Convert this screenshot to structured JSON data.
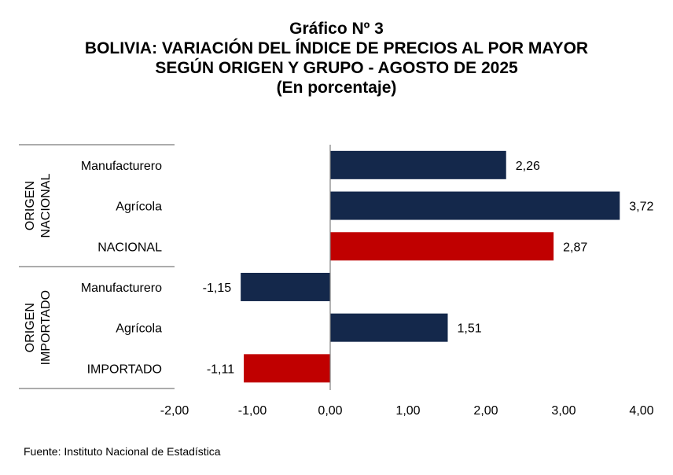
{
  "header": {
    "line1": "Gráfico Nº 3",
    "line2": "BOLIVIA: VARIACIÓN DEL ÍNDICE DE PRECIOS AL POR MAYOR",
    "line3": "SEGÚN ORIGEN Y GRUPO - AGOSTO DE 2025",
    "line4": "(En porcentaje)"
  },
  "footer": {
    "source": "Fuente: Instituto Nacional de Estadística"
  },
  "colors": {
    "group": "#14284b",
    "total": "#c00000",
    "axis": "#808080",
    "separator": "#595959"
  },
  "chart_data": {
    "type": "bar",
    "orientation": "horizontal",
    "categories": [
      "Manufacturero",
      "Agrícola",
      "NACIONAL",
      "Manufacturero",
      "Agrícola",
      "IMPORTADO"
    ],
    "values": [
      2.26,
      3.72,
      2.87,
      -1.15,
      1.51,
      -1.11
    ],
    "value_labels": [
      "2,26",
      "3,72",
      "2,87",
      "-1,15",
      "1,51",
      "-1,11"
    ],
    "bar_kind": [
      "group",
      "group",
      "total",
      "group",
      "group",
      "total"
    ],
    "groups": [
      {
        "line1": "ORIGEN",
        "line2": "NACIONAL",
        "start": 0,
        "end": 2
      },
      {
        "line1": "ORIGEN",
        "line2": "IMPORTADO",
        "start": 3,
        "end": 5
      }
    ],
    "xlim": [
      -2,
      4
    ],
    "xticks": [
      -2,
      -1,
      0,
      1,
      2,
      3,
      4
    ],
    "xtick_labels": [
      "-2,00",
      "-1,00",
      "0,00",
      "1,00",
      "2,00",
      "3,00",
      "4,00"
    ],
    "grid": false,
    "legend": "none"
  }
}
